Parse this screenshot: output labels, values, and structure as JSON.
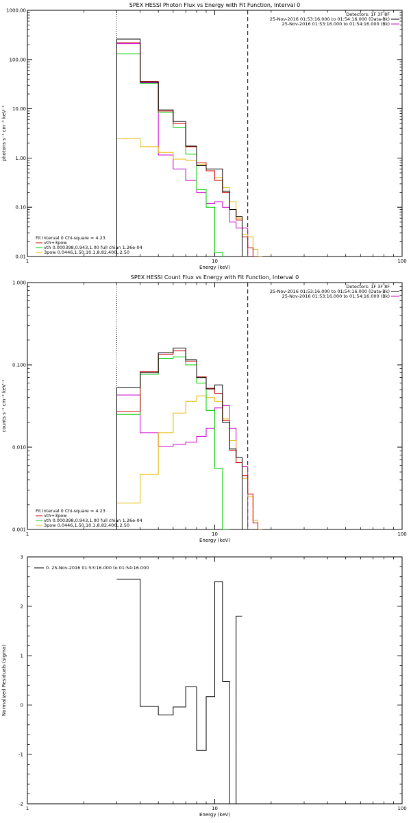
{
  "chart_data": [
    {
      "type": "line",
      "title": "SPEX HESSI Photon Flux vs Energy with Fit Function, Interval 0",
      "xlabel": "Energy (keV)",
      "ylabel": "photons s⁻¹ cm⁻² keV⁻¹",
      "xscale": "log",
      "yscale": "log",
      "xlim": [
        1,
        100
      ],
      "ylim": [
        0.01,
        1000
      ],
      "xticks": [
        "1",
        "10",
        "100"
      ],
      "yticks": [
        "0.01",
        "0.10",
        "1.00",
        "10.00",
        "100.00",
        "1000.00"
      ],
      "info_lines": [
        {
          "text": "Detectors: 1F 3F 8F",
          "color": "#000000",
          "swatch": false
        },
        {
          "text": "25-Nov-2016 01:53:16.000 to 01:54:16.000 (Data-Bk)",
          "color": "#000000",
          "swatch": true
        },
        {
          "text": "25-Nov-2016 01:53:16.000 to 01:54:16.000 (Bk)",
          "color": "#cc00cc",
          "swatch": true
        }
      ],
      "legend": [
        {
          "text": "Fit Interval 0   Chi-square = 4.23",
          "color": "#000000",
          "swatch": false
        },
        {
          "text": "vth+3pow",
          "color": "#cc0000",
          "swatch": true
        },
        {
          "text": "vth 0.000398,0.943,1.00  full chian 1.26e-04",
          "color": "#00cc00",
          "swatch": true
        },
        {
          "text": "3pow 0.0446,1.50,10.1,8.82,400.,2.50",
          "color": "#e6b800",
          "swatch": true
        }
      ],
      "vlines": [
        {
          "x": 3.0,
          "style": "dotted",
          "color": "#000000"
        },
        {
          "x": 15.0,
          "style": "dashed",
          "color": "#000000"
        }
      ],
      "edges": [
        3.0,
        4.0,
        5.0,
        6.0,
        7.0,
        8.0,
        9.0,
        10.0,
        11.0,
        12.0,
        13.0,
        14.0,
        15.0,
        16.0,
        17.0,
        18.0
      ],
      "series": [
        {
          "color": "#cc00cc",
          "values": [
            210,
            34,
            1.15,
            0.6,
            0.35,
            0.2,
            0.12,
            0.13,
            0.1,
            0.05,
            0.038,
            0.038,
            null,
            null,
            null
          ]
        },
        {
          "color": "#e6b800",
          "values": [
            2.5,
            1.7,
            1.3,
            0.95,
            0.9,
            0.75,
            0.55,
            0.4,
            0.25,
            0.13,
            0.06,
            0.028,
            0.025,
            0.014,
            0.008
          ]
        },
        {
          "color": "#00cc00",
          "values": [
            130,
            33,
            8.5,
            4.2,
            1.2,
            0.23,
            0.1,
            0.012,
            null,
            null,
            null,
            null,
            null,
            null,
            null
          ]
        },
        {
          "color": "#cc0000",
          "values": [
            220,
            36,
            9.0,
            5.0,
            1.7,
            0.8,
            0.55,
            0.35,
            0.2,
            0.09,
            0.055,
            0.025,
            0.015,
            0.009,
            null
          ]
        },
        {
          "color": "#000000",
          "values": [
            260,
            35,
            9.5,
            5.5,
            1.75,
            0.7,
            0.6,
            0.6,
            0.21,
            0.09,
            0.065,
            null,
            null,
            null,
            null
          ]
        }
      ]
    },
    {
      "type": "line",
      "title": "SPEX HESSI Count Flux vs Energy with Fit Function, Interval 0",
      "xlabel": "Energy (keV)",
      "ylabel": "counts s⁻¹ cm⁻² keV⁻¹",
      "xscale": "log",
      "yscale": "log",
      "xlim": [
        1,
        100
      ],
      "ylim": [
        0.001,
        1
      ],
      "xticks": [
        "1",
        "10",
        "100"
      ],
      "yticks": [
        "0.001",
        "0.010",
        "0.100",
        "1.000"
      ],
      "info_lines": [
        {
          "text": "Detectors: 1F 3F 8F",
          "color": "#000000",
          "swatch": false
        },
        {
          "text": "25-Nov-2016 01:53:16.000 to 01:54:16.000 (Data-Bk)",
          "color": "#000000",
          "swatch": true
        },
        {
          "text": "25-Nov-2016 01:53:16.000 to 01:54:16.000 (Bk)",
          "color": "#cc00cc",
          "swatch": true
        }
      ],
      "legend": [
        {
          "text": "Fit Interval 0   Chi-square = 4.23",
          "color": "#000000",
          "swatch": false
        },
        {
          "text": "vth+3pow",
          "color": "#cc0000",
          "swatch": true
        },
        {
          "text": "vth 0.000398,0.943,1.00  full chian 1.26e-04",
          "color": "#00cc00",
          "swatch": true
        },
        {
          "text": "3pow 0.0446,1.50,10.1,8.82,400.,2.50",
          "color": "#e6b800",
          "swatch": true
        }
      ],
      "vlines": [
        {
          "x": 3.0,
          "style": "dotted",
          "color": "#000000"
        },
        {
          "x": 15.0,
          "style": "dashed",
          "color": "#000000"
        }
      ],
      "edges": [
        3.0,
        4.0,
        5.0,
        6.0,
        7.0,
        8.0,
        9.0,
        10.0,
        11.0,
        12.0,
        13.0,
        14.0,
        15.0,
        16.0,
        17.0,
        18.0
      ],
      "series": [
        {
          "color": "#cc00cc",
          "values": [
            0.043,
            0.015,
            0.0102,
            0.0108,
            0.0115,
            0.0135,
            0.017,
            0.03,
            0.032,
            0.017,
            0.0075,
            0.0058,
            null,
            null,
            null
          ]
        },
        {
          "color": "#e6b800",
          "values": [
            0.0021,
            0.0047,
            0.015,
            0.026,
            0.036,
            0.042,
            0.04,
            0.036,
            0.022,
            0.012,
            0.0065,
            0.0042,
            0.0025,
            0.0013,
            0.00095
          ]
        },
        {
          "color": "#00cc00",
          "values": [
            0.025,
            0.077,
            0.12,
            0.125,
            0.1,
            0.06,
            0.028,
            0.0055,
            0.0009,
            null,
            null,
            null,
            null,
            null,
            null
          ]
        },
        {
          "color": "#cc0000",
          "values": [
            0.027,
            0.083,
            0.135,
            0.148,
            0.11,
            0.072,
            0.052,
            0.045,
            0.021,
            0.0092,
            0.0065,
            0.0045,
            0.0027,
            0.0012,
            null
          ]
        },
        {
          "color": "#000000",
          "values": [
            0.053,
            0.08,
            0.14,
            0.16,
            0.115,
            0.07,
            0.051,
            0.057,
            0.02,
            0.0095,
            0.0075,
            null,
            null,
            null,
            null
          ]
        }
      ]
    },
    {
      "type": "line",
      "title": "",
      "xlabel": "Energy (keV)",
      "ylabel": "Normalized Residuals (sigma)",
      "xscale": "log",
      "yscale": "linear",
      "xlim": [
        1,
        100
      ],
      "ylim": [
        -2,
        3
      ],
      "xticks": [
        "1",
        "10",
        "100"
      ],
      "yticks": [
        "-2",
        "-1",
        "0",
        "1",
        "2",
        "3"
      ],
      "info_lines": [],
      "legend": [
        {
          "text": "0. 25-Nov-2016 01:53:16.000 to 01:54:16.000",
          "color": "#000000",
          "swatch": true
        }
      ],
      "vlines": [],
      "edges": [
        3.0,
        4.0,
        5.0,
        6.0,
        7.0,
        8.0,
        9.0,
        10.0,
        11.0,
        12.0,
        13.0,
        14.0
      ],
      "series": [
        {
          "color": "#000000",
          "values": [
            2.55,
            -0.03,
            -0.2,
            -0.04,
            0.37,
            -0.92,
            0.17,
            2.5,
            0.48,
            -2.0,
            1.8
          ]
        }
      ]
    }
  ]
}
